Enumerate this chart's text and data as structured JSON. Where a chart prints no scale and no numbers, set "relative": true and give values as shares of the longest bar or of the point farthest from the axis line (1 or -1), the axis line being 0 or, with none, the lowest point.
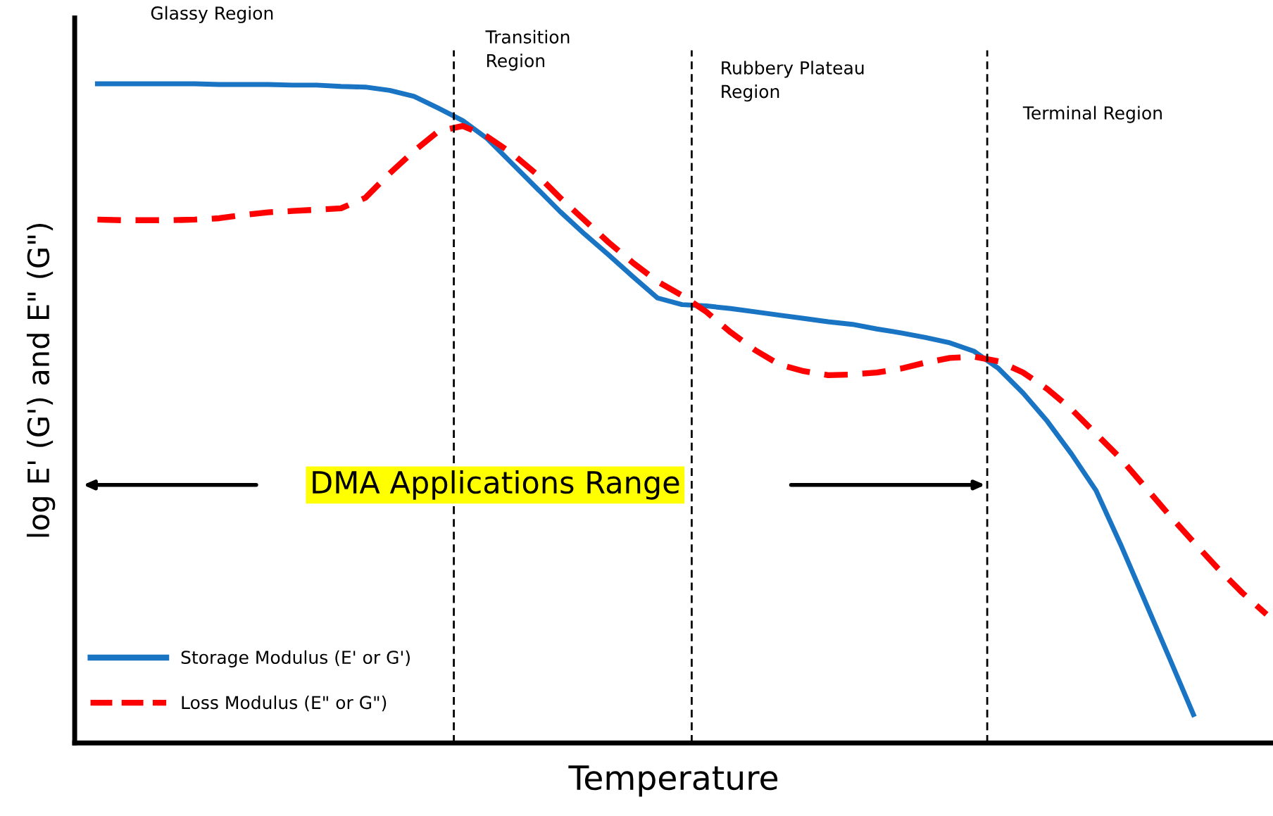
{
  "chart_data": {
    "type": "line",
    "relative": true,
    "xlabel": "Temperature",
    "ylabel": "log E' (G') and E\" (G\")",
    "categories": [
      null,
      null,
      null,
      null,
      null,
      null,
      null,
      null,
      null,
      null,
      null,
      null,
      null,
      null,
      null,
      null,
      null,
      null,
      null,
      null,
      null,
      null,
      null,
      null,
      null,
      null,
      null,
      null,
      null,
      null,
      null,
      null,
      null,
      null,
      null,
      null,
      null,
      null,
      null,
      null,
      null,
      null,
      null,
      null,
      null,
      null,
      null,
      null,
      null
    ],
    "series": [
      {
        "name": "Storage Modulus (E' or G')",
        "color": "#1a74c4",
        "line_style": "solid",
        "values": [
          1.0,
          1.0,
          1.0,
          1.0,
          1.0,
          0.999,
          0.999,
          0.999,
          0.998,
          0.998,
          0.996,
          0.995,
          0.99,
          0.981,
          0.963,
          0.944,
          0.917,
          0.88,
          0.843,
          0.806,
          0.772,
          0.74,
          0.707,
          0.675,
          0.665,
          0.663,
          0.659,
          0.654,
          0.649,
          0.644,
          0.639,
          0.635,
          0.628,
          0.622,
          0.615,
          0.607,
          0.594,
          0.568,
          0.531,
          0.488,
          0.438,
          0.383,
          0.302,
          0.216,
          0.13,
          0.043,
          null,
          null,
          null
        ]
      },
      {
        "name": "Loss Modulus (E\" or G\")",
        "color": "#ff0000",
        "line_style": "dashed",
        "values": [
          0.794,
          0.793,
          0.793,
          0.793,
          0.794,
          0.796,
          0.801,
          0.805,
          0.807,
          0.809,
          0.811,
          0.827,
          0.864,
          0.898,
          0.928,
          0.936,
          0.92,
          0.895,
          0.864,
          0.827,
          0.793,
          0.759,
          0.728,
          0.7,
          0.679,
          0.654,
          0.623,
          0.596,
          0.574,
          0.564,
          0.558,
          0.559,
          0.562,
          0.568,
          0.577,
          0.584,
          0.586,
          0.579,
          0.562,
          0.537,
          0.506,
          0.469,
          0.432,
          0.389,
          0.346,
          0.305,
          0.265,
          0.228,
          0.195
        ]
      }
    ],
    "annotations": [
      "Glassy Region",
      "Transition\nRegion",
      "Rubbery Plateau\nRegion",
      "Terminal Region",
      "DMA Applications Range"
    ],
    "legend": "bottom left"
  }
}
